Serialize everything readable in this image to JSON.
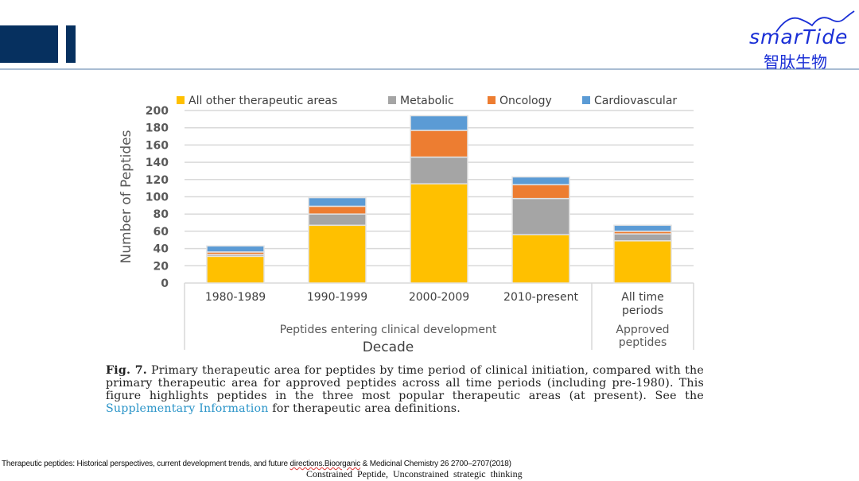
{
  "header": {
    "logo_text": "smarTide",
    "logo_chinese": "智肽生物",
    "brand_color": "#06305f",
    "logo_color": "#1a2fd6"
  },
  "chart_data": {
    "type": "bar",
    "stacked": true,
    "title": "",
    "ylabel": "Number of Peptides",
    "xlabel": "Decade",
    "ylim": [
      0,
      200
    ],
    "yticks": [
      0,
      20,
      40,
      60,
      80,
      100,
      120,
      140,
      160,
      180,
      200
    ],
    "grid": true,
    "legend_position": "top",
    "categories": [
      "1980-1989",
      "1990-1999",
      "2000-2009",
      "2010-present",
      "All time periods"
    ],
    "category_groups": [
      {
        "label": "Peptides entering clinical development",
        "categories": [
          "1980-1989",
          "1990-1999",
          "2000-2009",
          "2010-present"
        ]
      },
      {
        "label": "Approved peptides",
        "categories": [
          "All time periods"
        ]
      }
    ],
    "series": [
      {
        "name": "All other therapeutic areas",
        "color": "#ffc000",
        "values": [
          31,
          67,
          115,
          56,
          49
        ]
      },
      {
        "name": "Metabolic",
        "color": "#a5a5a5",
        "values": [
          2,
          13,
          31,
          42,
          8
        ]
      },
      {
        "name": "Oncology",
        "color": "#ed7d31",
        "values": [
          3,
          9,
          31,
          16,
          3
        ]
      },
      {
        "name": "Cardiovascular",
        "color": "#5b9bd5",
        "values": [
          7,
          10,
          17,
          9,
          7
        ]
      }
    ]
  },
  "caption": {
    "fig_label": "Fig. 7.",
    "text_before_link": " Primary therapeutic area for peptides by time period of clinical initiation, compared with the primary therapeutic area for approved peptides across all time periods (including pre-1980). This figure highlights peptides in the three most popular therapeutic areas (at present). See the ",
    "link_text": "Supplementary Information",
    "text_after_link": " for therapeutic area definitions."
  },
  "footer": {
    "reference_prefix": "Therapeutic peptides: Historical perspectives, current development trends, and future ",
    "reference_squiggle": "directions.Bioorganic",
    "reference_suffix": " & Medicinal  Chemistry 26 2700–2707(2018)",
    "tagline": "Constrained  Peptide,  Unconstrained  strategic  thinking"
  }
}
